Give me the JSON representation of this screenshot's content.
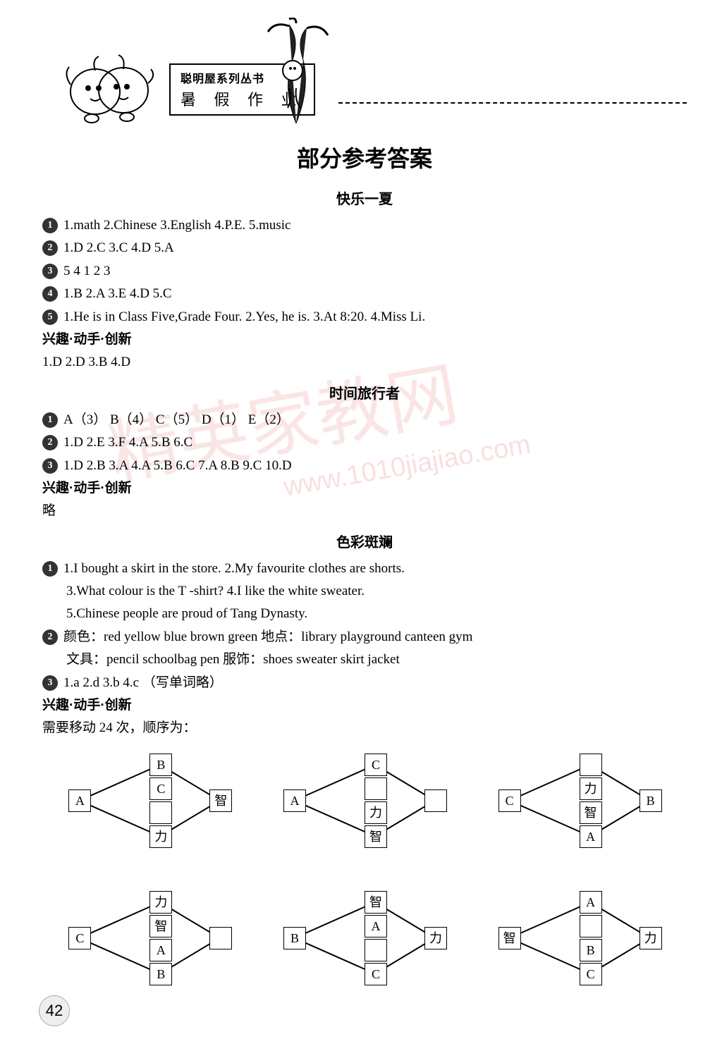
{
  "header": {
    "series": "聪明屋系列丛书",
    "title": "暑 假 作 业"
  },
  "main_title": "部分参考答案",
  "watermark_main": "精英家教网",
  "watermark_url": "www.1010jiajiao.com",
  "page_number": "42",
  "sections": [
    {
      "title": "快乐一夏",
      "items": [
        {
          "num": "1",
          "text": "1.math  2.Chinese  3.English  4.P.E.  5.music"
        },
        {
          "num": "2",
          "text": "1.D  2.C  3.C  4.D  5.A"
        },
        {
          "num": "3",
          "text": "5  4  1  2  3"
        },
        {
          "num": "4",
          "text": "1.B  2.A  3.E  4.D  5.C"
        },
        {
          "num": "5",
          "text": "1.He is in Class Five,Grade Four.  2.Yes, he is.  3.At 8:20.   4.Miss Li."
        }
      ],
      "sub_title": "兴趣·动手·创新",
      "sub_text": "1.D  2.D  3.B  4.D"
    },
    {
      "title": "时间旅行者",
      "items": [
        {
          "num": "1",
          "text": "A（3）  B（4）  C（5）  D（1）  E（2）"
        },
        {
          "num": "2",
          "text": "1.D  2.E  3.F  4.A  5.B  6.C"
        },
        {
          "num": "3",
          "text": "1.D  2.B  3.A  4.A  5.B  6.C  7.A  8.B  9.C  10.D"
        }
      ],
      "sub_title": "兴趣·动手·创新",
      "sub_text": "略"
    },
    {
      "title": "色彩斑斓",
      "items": [
        {
          "num": "1",
          "text": "1.I bought a skirt in the store.  2.My favourite clothes are shorts."
        },
        {
          "num": "",
          "text": "3.What colour is the T -shirt?  4.I like the white sweater.",
          "indent": true
        },
        {
          "num": "",
          "text": "5.Chinese people are proud of Tang Dynasty.",
          "indent": true
        },
        {
          "num": "2",
          "text": "颜色：red  yellow  blue  brown  green       地点：library  playground  canteen  gym"
        },
        {
          "num": "",
          "text": "文具：pencil  schoolbag  pen                       服饰：shoes  sweater  skirt  jacket",
          "indent": true
        },
        {
          "num": "3",
          "text": "1.a  2.d  3.b  4.c  （写单词略）"
        }
      ],
      "sub_title": "兴趣·动手·创新",
      "sub_text": "需要移动 24 次，顺序为："
    }
  ],
  "diagrams": {
    "box_size": 30,
    "stroke": "#000000",
    "rows": [
      [
        {
          "left": "A",
          "right": "智",
          "stack": [
            "B",
            "C",
            "",
            "力"
          ]
        },
        {
          "left": "A",
          "right": "",
          "stack": [
            "C",
            "",
            "力",
            "智"
          ]
        },
        {
          "left": "C",
          "right": "B",
          "stack": [
            "",
            "力",
            "智",
            "A"
          ]
        }
      ],
      [
        {
          "left": "C",
          "right": "",
          "stack": [
            "力",
            "智",
            "A",
            "B"
          ]
        },
        {
          "left": "B",
          "right": "力",
          "stack": [
            "智",
            "A",
            "",
            "C"
          ]
        },
        {
          "left": "智",
          "right": "力",
          "stack": [
            "A",
            "",
            "B",
            "C"
          ]
        }
      ]
    ]
  },
  "colors": {
    "text": "#000000",
    "background": "#ffffff",
    "bullet_bg": "#333333",
    "bullet_fg": "#ffffff",
    "watermark": "rgba(220,80,80,0.15)"
  },
  "typography": {
    "main_title_size_pt": 24,
    "section_title_size_pt": 15,
    "body_size_pt": 14,
    "font_family_title": "SimHei",
    "font_family_body": "SimSun / Times"
  }
}
